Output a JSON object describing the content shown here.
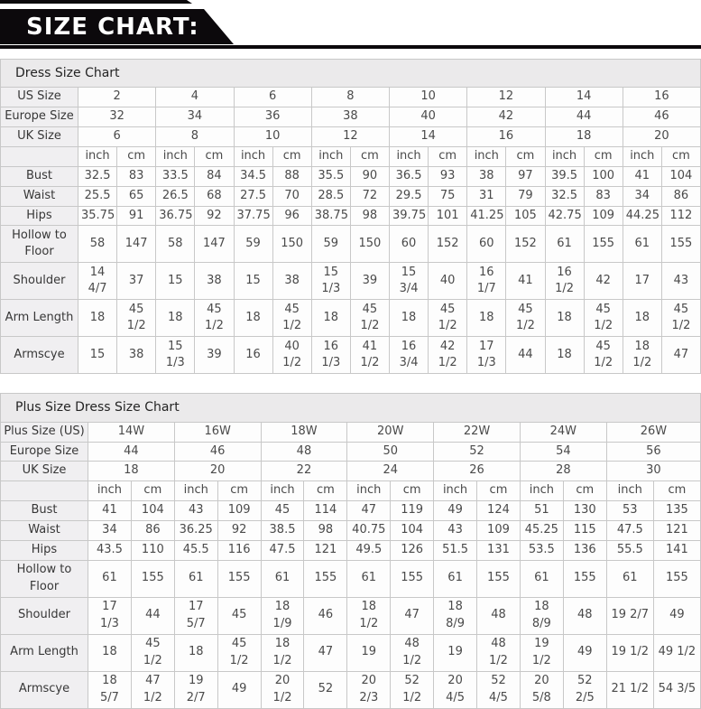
{
  "banner": {
    "title": "SIZE CHART:"
  },
  "units": {
    "inch": "inch",
    "cm": "cm"
  },
  "colors": {
    "banner_bg": "#0c090c",
    "section_header_bg": "#ebeaeb",
    "label_cell_bg": "#f0eff1",
    "data_cell_bg": "#fdfdfd",
    "border": "#c8c8c8",
    "text": "#4a4a4a"
  },
  "tables": [
    {
      "title": "Dress Size Chart",
      "size_rows": [
        {
          "label": "US Size",
          "values": [
            "2",
            "4",
            "6",
            "8",
            "10",
            "12",
            "14",
            "16"
          ]
        },
        {
          "label": "Europe Size",
          "values": [
            "32",
            "34",
            "36",
            "38",
            "40",
            "42",
            "44",
            "46"
          ]
        },
        {
          "label": "UK Size",
          "values": [
            "6",
            "8",
            "10",
            "12",
            "14",
            "16",
            "18",
            "20"
          ]
        }
      ],
      "measure_rows": [
        {
          "label": "Bust",
          "tall": false,
          "values": [
            "32.5",
            "83",
            "33.5",
            "84",
            "34.5",
            "88",
            "35.5",
            "90",
            "36.5",
            "93",
            "38",
            "97",
            "39.5",
            "100",
            "41",
            "104"
          ]
        },
        {
          "label": "Waist",
          "tall": false,
          "values": [
            "25.5",
            "65",
            "26.5",
            "68",
            "27.5",
            "70",
            "28.5",
            "72",
            "29.5",
            "75",
            "31",
            "79",
            "32.5",
            "83",
            "34",
            "86"
          ]
        },
        {
          "label": "Hips",
          "tall": false,
          "values": [
            "35.75",
            "91",
            "36.75",
            "92",
            "37.75",
            "96",
            "38.75",
            "98",
            "39.75",
            "101",
            "41.25",
            "105",
            "42.75",
            "109",
            "44.25",
            "112"
          ]
        },
        {
          "label": "Hollow to Floor",
          "tall": true,
          "values": [
            "58",
            "147",
            "58",
            "147",
            "59",
            "150",
            "59",
            "150",
            "60",
            "152",
            "60",
            "152",
            "61",
            "155",
            "61",
            "155"
          ]
        },
        {
          "label": "Shoulder",
          "tall": true,
          "values": [
            "14 4/7",
            "37",
            "15",
            "38",
            "15",
            "38",
            "15 1/3",
            "39",
            "15 3/4",
            "40",
            "16 1/7",
            "41",
            "16 1/2",
            "42",
            "17",
            "43"
          ]
        },
        {
          "label": "Arm Length",
          "tall": true,
          "values": [
            "18",
            "45 1/2",
            "18",
            "45 1/2",
            "18",
            "45 1/2",
            "18",
            "45 1/2",
            "18",
            "45 1/2",
            "18",
            "45 1/2",
            "18",
            "45 1/2",
            "18",
            "45 1/2"
          ]
        },
        {
          "label": "Armscye",
          "tall": true,
          "values": [
            "15",
            "38",
            "15 1/3",
            "39",
            "16",
            "40 1/2",
            "16 1/3",
            "41 1/2",
            "16 3/4",
            "42 1/2",
            "17 1/3",
            "44",
            "18",
            "45 1/2",
            "18 1/2",
            "47"
          ]
        }
      ]
    },
    {
      "title": "Plus Size Dress Size Chart",
      "size_rows": [
        {
          "label": "Plus Size (US)",
          "values": [
            "14W",
            "16W",
            "18W",
            "20W",
            "22W",
            "24W",
            "26W"
          ]
        },
        {
          "label": "Europe Size",
          "values": [
            "44",
            "46",
            "48",
            "50",
            "52",
            "54",
            "56"
          ]
        },
        {
          "label": "UK Size",
          "values": [
            "18",
            "20",
            "22",
            "24",
            "26",
            "28",
            "30"
          ]
        }
      ],
      "measure_rows": [
        {
          "label": "Bust",
          "tall": false,
          "values": [
            "41",
            "104",
            "43",
            "109",
            "45",
            "114",
            "47",
            "119",
            "49",
            "124",
            "51",
            "130",
            "53",
            "135"
          ]
        },
        {
          "label": "Waist",
          "tall": false,
          "values": [
            "34",
            "86",
            "36.25",
            "92",
            "38.5",
            "98",
            "40.75",
            "104",
            "43",
            "109",
            "45.25",
            "115",
            "47.5",
            "121"
          ]
        },
        {
          "label": "Hips",
          "tall": false,
          "values": [
            "43.5",
            "110",
            "45.5",
            "116",
            "47.5",
            "121",
            "49.5",
            "126",
            "51.5",
            "131",
            "53.5",
            "136",
            "55.5",
            "141"
          ]
        },
        {
          "label": "Hollow to Floor",
          "tall": true,
          "values": [
            "61",
            "155",
            "61",
            "155",
            "61",
            "155",
            "61",
            "155",
            "61",
            "155",
            "61",
            "155",
            "61",
            "155"
          ]
        },
        {
          "label": "Shoulder",
          "tall": true,
          "values": [
            "17 1/3",
            "44",
            "17 5/7",
            "45",
            "18 1/9",
            "46",
            "18 1/2",
            "47",
            "18 8/9",
            "48",
            "18 8/9",
            "48",
            "19 2/7",
            "49"
          ]
        },
        {
          "label": "Arm Length",
          "tall": true,
          "values": [
            "18",
            "45 1/2",
            "18",
            "45 1/2",
            "18 1/2",
            "47",
            "19",
            "48 1/2",
            "19",
            "48 1/2",
            "19 1/2",
            "49",
            "19 1/2",
            "49 1/2"
          ]
        },
        {
          "label": "Armscye",
          "tall": true,
          "values": [
            "18 5/7",
            "47 1/2",
            "19 2/7",
            "49",
            "20 1/2",
            "52",
            "20 2/3",
            "52 1/2",
            "20 4/5",
            "52 4/5",
            "20 5/8",
            "52 2/5",
            "21 1/2",
            "54 3/5"
          ]
        }
      ]
    }
  ]
}
